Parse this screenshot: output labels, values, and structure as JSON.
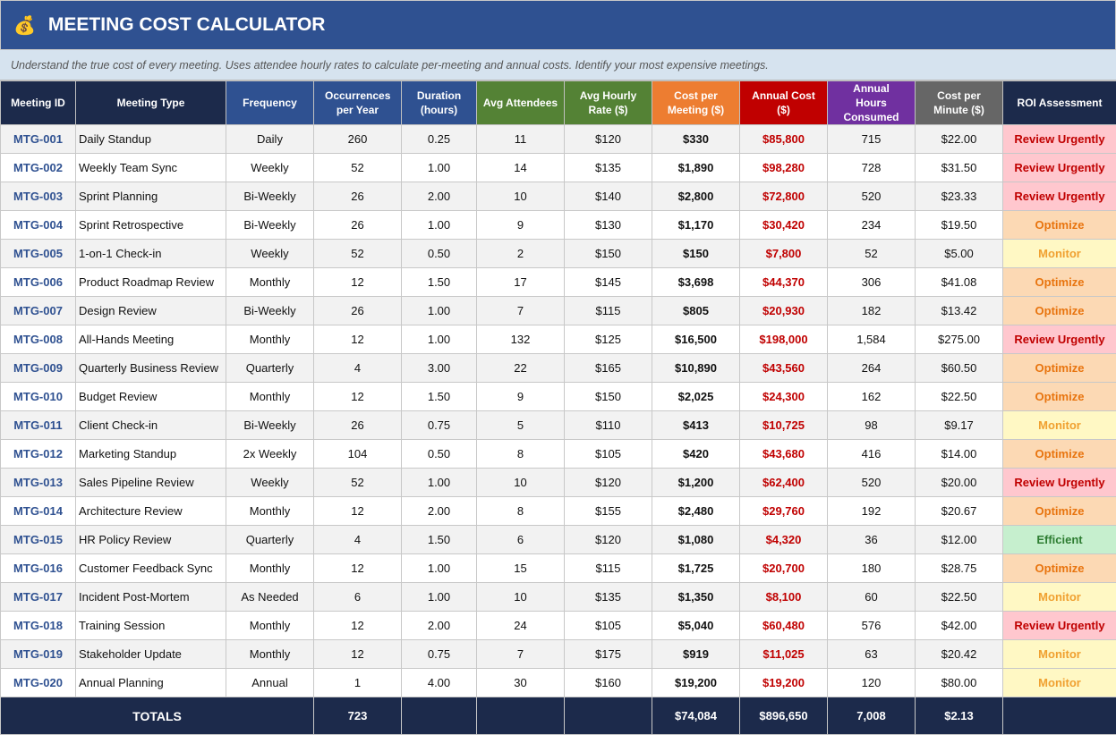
{
  "header": {
    "icon": "money-bag-icon",
    "title": "MEETING COST CALCULATOR",
    "subtitle": "Understand the true cost of every meeting. Uses attendee hourly rates to calculate per-meeting and annual costs. Identify your most expensive meetings."
  },
  "columns": [
    {
      "label": "Meeting ID",
      "color": "#1c2a4b"
    },
    {
      "label": "Meeting Type",
      "color": "#1c2a4b"
    },
    {
      "label": "Frequency",
      "color": "#2f5191"
    },
    {
      "label": "Occurrences per Year",
      "color": "#2f5191"
    },
    {
      "label": "Duration (hours)",
      "color": "#2f5191"
    },
    {
      "label": "Avg Attendees",
      "color": "#548235"
    },
    {
      "label": "Avg Hourly Rate ($)",
      "color": "#548235"
    },
    {
      "label": "Cost per Meeting ($)",
      "color": "#ed7d31"
    },
    {
      "label": "Annual Cost ($)",
      "color": "#c00000"
    },
    {
      "label": "Annual Hours Consumed",
      "color": "#7030a0"
    },
    {
      "label": "Cost per Minute ($)",
      "color": "#666666"
    },
    {
      "label": "ROI Assessment",
      "color": "#1c2a4b"
    }
  ],
  "rows": [
    [
      "MTG-001",
      "Daily Standup",
      "Daily",
      "260",
      "0.25",
      "11",
      "$120",
      "$330",
      "$85,800",
      "715",
      "$22.00",
      "Review Urgently"
    ],
    [
      "MTG-002",
      "Weekly Team Sync",
      "Weekly",
      "52",
      "1.00",
      "14",
      "$135",
      "$1,890",
      "$98,280",
      "728",
      "$31.50",
      "Review Urgently"
    ],
    [
      "MTG-003",
      "Sprint Planning",
      "Bi-Weekly",
      "26",
      "2.00",
      "10",
      "$140",
      "$2,800",
      "$72,800",
      "520",
      "$23.33",
      "Review Urgently"
    ],
    [
      "MTG-004",
      "Sprint Retrospective",
      "Bi-Weekly",
      "26",
      "1.00",
      "9",
      "$130",
      "$1,170",
      "$30,420",
      "234",
      "$19.50",
      "Optimize"
    ],
    [
      "MTG-005",
      "1-on-1 Check-in",
      "Weekly",
      "52",
      "0.50",
      "2",
      "$150",
      "$150",
      "$7,800",
      "52",
      "$5.00",
      "Monitor"
    ],
    [
      "MTG-006",
      "Product Roadmap Review",
      "Monthly",
      "12",
      "1.50",
      "17",
      "$145",
      "$3,698",
      "$44,370",
      "306",
      "$41.08",
      "Optimize"
    ],
    [
      "MTG-007",
      "Design Review",
      "Bi-Weekly",
      "26",
      "1.00",
      "7",
      "$115",
      "$805",
      "$20,930",
      "182",
      "$13.42",
      "Optimize"
    ],
    [
      "MTG-008",
      "All-Hands Meeting",
      "Monthly",
      "12",
      "1.00",
      "132",
      "$125",
      "$16,500",
      "$198,000",
      "1,584",
      "$275.00",
      "Review Urgently"
    ],
    [
      "MTG-009",
      "Quarterly Business Review",
      "Quarterly",
      "4",
      "3.00",
      "22",
      "$165",
      "$10,890",
      "$43,560",
      "264",
      "$60.50",
      "Optimize"
    ],
    [
      "MTG-010",
      "Budget Review",
      "Monthly",
      "12",
      "1.50",
      "9",
      "$150",
      "$2,025",
      "$24,300",
      "162",
      "$22.50",
      "Optimize"
    ],
    [
      "MTG-011",
      "Client Check-in",
      "Bi-Weekly",
      "26",
      "0.75",
      "5",
      "$110",
      "$413",
      "$10,725",
      "98",
      "$9.17",
      "Monitor"
    ],
    [
      "MTG-012",
      "Marketing Standup",
      "2x Weekly",
      "104",
      "0.50",
      "8",
      "$105",
      "$420",
      "$43,680",
      "416",
      "$14.00",
      "Optimize"
    ],
    [
      "MTG-013",
      "Sales Pipeline Review",
      "Weekly",
      "52",
      "1.00",
      "10",
      "$120",
      "$1,200",
      "$62,400",
      "520",
      "$20.00",
      "Review Urgently"
    ],
    [
      "MTG-014",
      "Architecture Review",
      "Monthly",
      "12",
      "2.00",
      "8",
      "$155",
      "$2,480",
      "$29,760",
      "192",
      "$20.67",
      "Optimize"
    ],
    [
      "MTG-015",
      "HR Policy Review",
      "Quarterly",
      "4",
      "1.50",
      "6",
      "$120",
      "$1,080",
      "$4,320",
      "36",
      "$12.00",
      "Efficient"
    ],
    [
      "MTG-016",
      "Customer Feedback Sync",
      "Monthly",
      "12",
      "1.00",
      "15",
      "$115",
      "$1,725",
      "$20,700",
      "180",
      "$28.75",
      "Optimize"
    ],
    [
      "MTG-017",
      "Incident Post-Mortem",
      "As Needed",
      "6",
      "1.00",
      "10",
      "$135",
      "$1,350",
      "$8,100",
      "60",
      "$22.50",
      "Monitor"
    ],
    [
      "MTG-018",
      "Training Session",
      "Monthly",
      "12",
      "2.00",
      "24",
      "$105",
      "$5,040",
      "$60,480",
      "576",
      "$42.00",
      "Review Urgently"
    ],
    [
      "MTG-019",
      "Stakeholder Update",
      "Monthly",
      "12",
      "0.75",
      "7",
      "$175",
      "$919",
      "$11,025",
      "63",
      "$20.42",
      "Monitor"
    ],
    [
      "MTG-020",
      "Annual Planning",
      "Annual",
      "1",
      "4.00",
      "30",
      "$160",
      "$19,200",
      "$19,200",
      "120",
      "$80.00",
      "Monitor"
    ]
  ],
  "totals": {
    "label": "TOTALS",
    "occurrences": "723",
    "cost_per_meeting": "$74,084",
    "annual_cost": "$896,650",
    "annual_hours": "7,008",
    "cost_per_minute": "$2.13"
  }
}
